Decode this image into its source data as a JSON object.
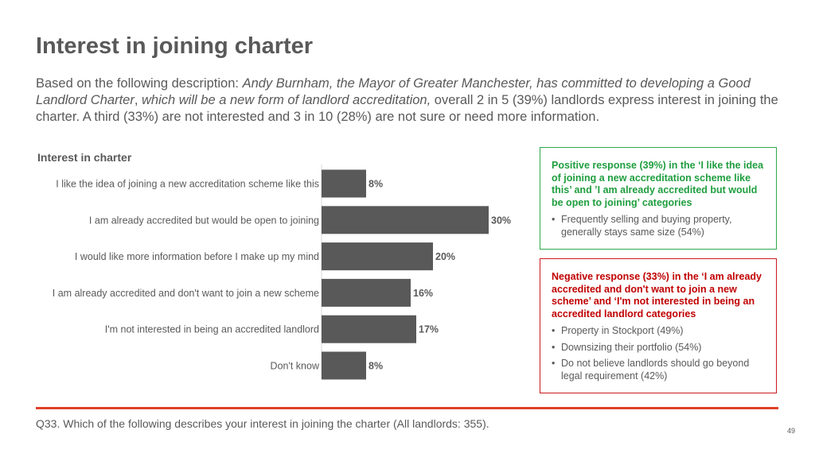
{
  "title": "Interest in joining charter",
  "intro": {
    "lead": "Based on the following description: ",
    "quote_1": "Andy Burnham, the Mayor of Greater Manchester, has committed to developing a Good Landlord Charter",
    "comma": ", ",
    "quote_2": "which will be a new form of landlord accreditation,",
    "tail": " overall 2 in 5 (39%) landlords express interest in joining the charter. A third (33%) are not interested and 3 in 10 (28%) are not sure or need more information."
  },
  "chart_data": {
    "type": "bar",
    "orientation": "horizontal",
    "title": "Interest in charter",
    "categories": [
      "I like the idea of joining a new accreditation scheme like this",
      "I am already accredited but would be open to joining",
      "I would like more information before I make up my mind",
      "I am already accredited and don't want to join a new scheme",
      "I'm not interested in being an accredited landlord",
      "Don't know"
    ],
    "values": [
      8,
      30,
      20,
      16,
      17,
      8
    ],
    "value_suffix": "%",
    "bar_color": "#595959",
    "grid": false
  },
  "positive_box": {
    "heading": "Positive response (39%) in the ‘I like the idea of joining a new accreditation scheme like this’ and ’I am already accredited but would be open to joining’ categories",
    "bullets": [
      "Frequently selling and buying property, generally stays same size (54%)"
    ],
    "color": "#1f9e3f"
  },
  "negative_box": {
    "heading": "Negative response (33%) in the ‘I am already accredited and don't want to join a new scheme’ and ‘I'm not interested in being an accredited landlord categories",
    "bullets": [
      "Property in Stockport (49%)",
      "Downsizing their portfolio (54%)",
      "Do not believe landlords should go beyond legal requirement (42%)"
    ],
    "color": "#c00000"
  },
  "footnote": "Q33. Which of the following describes your interest in joining the charter (All landlords: 355).",
  "page_number": "49",
  "accent_color": "#e0402a"
}
